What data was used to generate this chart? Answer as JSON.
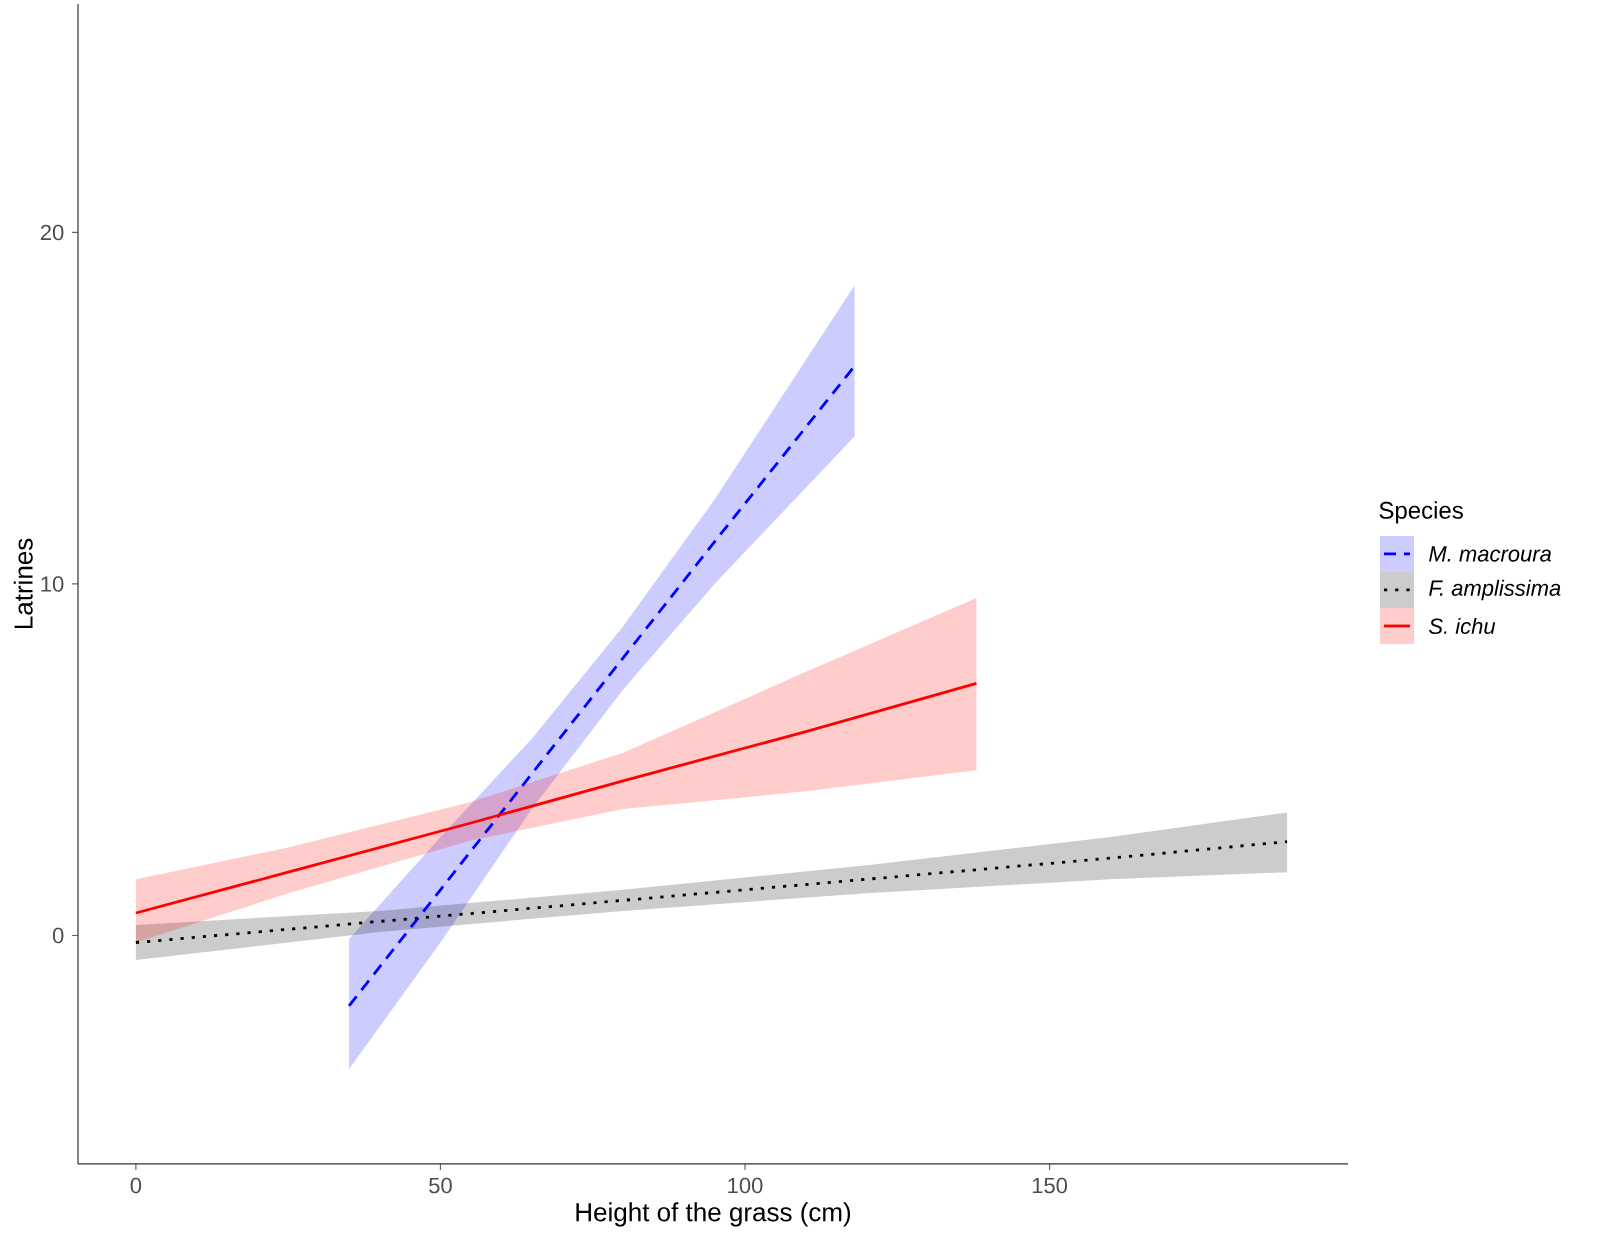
{
  "chart_data": {
    "type": "line",
    "xlabel": "Height of the grass (cm)",
    "ylabel": "Latrines",
    "legend_title": "Species",
    "xlim": [
      -9.5,
      199
    ],
    "ylim": [
      -6.5,
      26.5
    ],
    "xticks": [
      0,
      50,
      100,
      150
    ],
    "yticks": [
      0,
      10,
      20
    ],
    "grid": false,
    "legend": "right",
    "marker": "none",
    "series": [
      {
        "name": "M. macroura",
        "color": "#0000ff",
        "line_style": "dashed",
        "x": [
          35,
          50,
          65,
          80,
          95,
          118
        ],
        "values": [
          -2.0,
          1.3,
          4.6,
          7.9,
          11.2,
          16.2
        ],
        "lower": [
          -3.8,
          -0.2,
          3.6,
          7.0,
          10.0,
          14.2
        ],
        "upper": [
          -0.1,
          2.8,
          5.6,
          8.8,
          12.4,
          18.5
        ]
      },
      {
        "name": "F. amplissima",
        "color": "#000000",
        "line_style": "dotted",
        "x": [
          0,
          40,
          80,
          120,
          160,
          189
        ],
        "values": [
          -0.2,
          0.4,
          1.0,
          1.6,
          2.2,
          2.67
        ],
        "lower": [
          -0.7,
          0.1,
          0.7,
          1.2,
          1.6,
          1.8
        ],
        "upper": [
          0.3,
          0.7,
          1.3,
          2.0,
          2.8,
          3.5
        ]
      },
      {
        "name": "S. ichu",
        "color": "#ff0000",
        "line_style": "solid",
        "x": [
          0,
          25,
          55,
          80,
          110,
          138
        ],
        "values": [
          0.64,
          1.8,
          3.2,
          4.4,
          5.8,
          7.17
        ],
        "lower": [
          -0.2,
          1.2,
          2.7,
          3.6,
          4.1,
          4.7
        ],
        "upper": [
          1.6,
          2.5,
          3.8,
          5.2,
          7.5,
          9.6
        ]
      }
    ]
  }
}
